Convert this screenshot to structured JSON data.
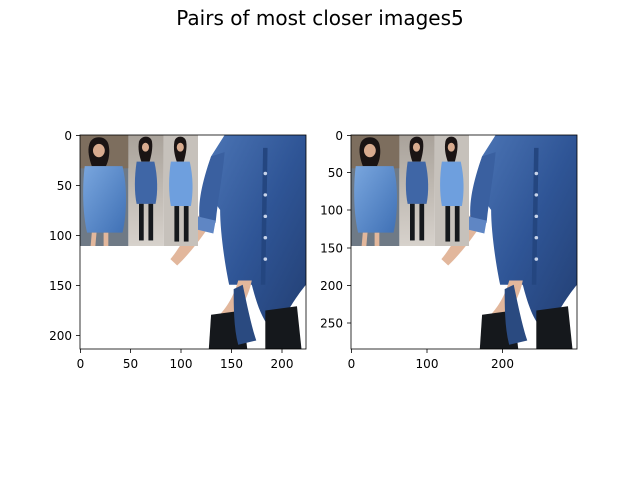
{
  "figure": {
    "title": "Pairs of most closer images5"
  },
  "panels": [
    {
      "x_ticks": [
        "0",
        "50",
        "100",
        "150",
        "200"
      ],
      "y_ticks": [
        "0",
        "50",
        "100",
        "150",
        "200"
      ],
      "image_extent": {
        "width": 225,
        "height": 214
      },
      "collage_extent": {
        "width": 118,
        "height": 111
      }
    },
    {
      "x_ticks": [
        "0",
        "100",
        "200"
      ],
      "y_ticks": [
        "0",
        "50",
        "100",
        "150",
        "200",
        "250"
      ],
      "image_extent": {
        "width": 300,
        "height": 285
      },
      "collage_extent": {
        "width": 158,
        "height": 148
      }
    }
  ],
  "colors": {
    "denim_dark": "#2f4f86",
    "denim_mid": "#3f66a6",
    "denim_light": "#5f8fcf",
    "boots": "#15181c",
    "skin": "#e2b79c",
    "hair": "#1a1414"
  }
}
